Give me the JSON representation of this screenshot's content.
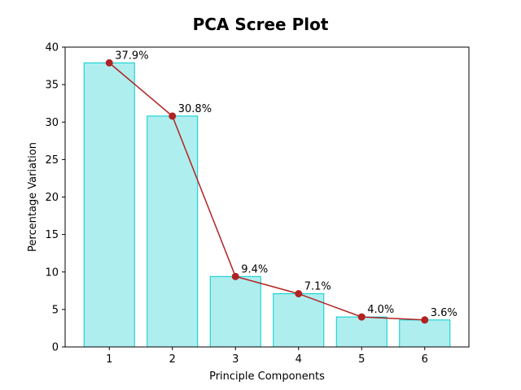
{
  "chart_data": {
    "type": "bar",
    "title": "PCA Scree Plot",
    "xlabel": "Principle Components",
    "ylabel": "Percentage Variation",
    "categories": [
      "1",
      "2",
      "3",
      "4",
      "5",
      "6"
    ],
    "values": [
      37.9,
      30.8,
      9.4,
      7.1,
      4.0,
      3.6
    ],
    "data_labels": [
      "37.9%",
      "30.8%",
      "9.4%",
      "7.1%",
      "4.0%",
      "3.6%"
    ],
    "yticks": [
      0,
      5,
      10,
      15,
      20,
      25,
      30,
      35,
      40
    ],
    "ylim": [
      0,
      40
    ],
    "xlim": [
      0.3,
      6.7
    ],
    "grid": false,
    "overlay_line": {
      "type": "line",
      "marker": "circle",
      "color": "#b22222"
    },
    "bar_fill": "#afeeee",
    "bar_edge": "#00ced1"
  }
}
